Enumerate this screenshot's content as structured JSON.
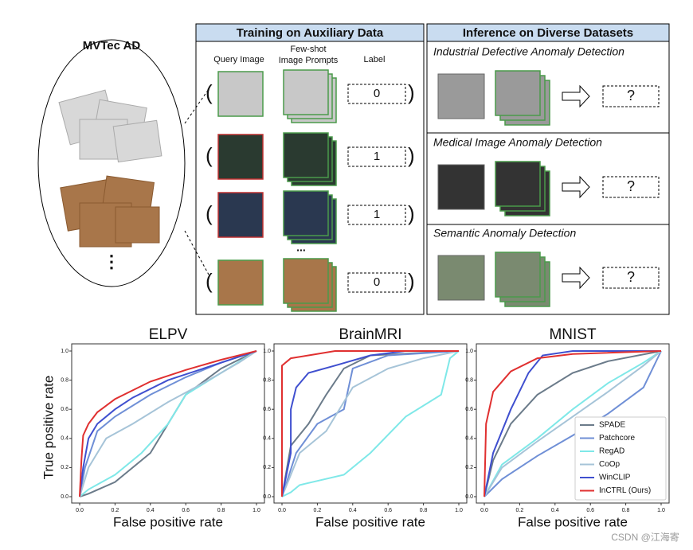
{
  "mvtec": {
    "title": "MVTec AD",
    "ellipsis": "⋮"
  },
  "training": {
    "title": "Training on Auxiliary Data",
    "query_header": "Query Image",
    "prompts_header": [
      "Few-shot",
      "Image Prompts"
    ],
    "label_header": "Label",
    "labels": [
      "0",
      "1",
      "1",
      "0"
    ],
    "ellipsis": "..."
  },
  "inference": {
    "title": "Inference on Diverse Datasets",
    "tasks": [
      {
        "name": "Industrial Defective Anomaly Detection",
        "output": "?"
      },
      {
        "name": "Medical Image Anomaly Detection",
        "output": "?"
      },
      {
        "name": "Semantic Anomaly Detection",
        "output": "?"
      }
    ]
  },
  "chart_data": [
    {
      "type": "line",
      "title": "ELPV",
      "xlabel": "False positive rate",
      "ylabel": "True positive rate",
      "xlim": [
        0,
        1
      ],
      "ylim": [
        0,
        1
      ],
      "xticks": [
        {
          "value": 0,
          "label": "0.0"
        },
        {
          "value": 0.2,
          "label": "0.2"
        },
        {
          "value": 0.4,
          "label": "0.4"
        },
        {
          "value": 0.6,
          "label": "0.6"
        },
        {
          "value": 0.8,
          "label": "0.8"
        },
        {
          "value": 1,
          "label": "1.0"
        }
      ],
      "yticks": [
        {
          "value": 0,
          "label": "0.0"
        },
        {
          "value": 0.2,
          "label": "0.2"
        },
        {
          "value": 0.4,
          "label": "0.4"
        },
        {
          "value": 0.6,
          "label": "0.6"
        },
        {
          "value": 0.8,
          "label": "0.8"
        },
        {
          "value": 1,
          "label": "1.0"
        }
      ],
      "series": [
        {
          "color": "#6b7b8a",
          "x": [
            0,
            0.05,
            0.2,
            0.4,
            0.5,
            0.6,
            0.8,
            1
          ],
          "values": [
            0,
            0.02,
            0.1,
            0.3,
            0.5,
            0.7,
            0.88,
            1
          ]
        },
        {
          "color": "#6f8fd6",
          "x": [
            0,
            0.03,
            0.1,
            0.2,
            0.4,
            0.6,
            0.8,
            1
          ],
          "values": [
            0,
            0.2,
            0.45,
            0.55,
            0.7,
            0.82,
            0.92,
            1
          ]
        },
        {
          "color": "#7fe8e8",
          "x": [
            0,
            0.05,
            0.2,
            0.35,
            0.5,
            0.6,
            0.8,
            1
          ],
          "values": [
            0,
            0.05,
            0.15,
            0.3,
            0.5,
            0.7,
            0.85,
            1
          ]
        },
        {
          "color": "#a6c4d8",
          "x": [
            0,
            0.05,
            0.15,
            0.3,
            0.5,
            0.7,
            0.9,
            1
          ],
          "values": [
            0,
            0.2,
            0.4,
            0.5,
            0.65,
            0.78,
            0.92,
            1
          ]
        },
        {
          "color": "#3f4fcf",
          "x": [
            0,
            0.02,
            0.05,
            0.1,
            0.2,
            0.3,
            0.5,
            0.7,
            0.9,
            1
          ],
          "values": [
            0,
            0.2,
            0.4,
            0.5,
            0.6,
            0.68,
            0.8,
            0.88,
            0.96,
            1
          ]
        },
        {
          "color": "#e03030",
          "x": [
            0,
            0.01,
            0.02,
            0.05,
            0.1,
            0.2,
            0.3,
            0.4,
            0.6,
            0.8,
            1
          ],
          "values": [
            0,
            0.25,
            0.42,
            0.5,
            0.58,
            0.67,
            0.73,
            0.79,
            0.87,
            0.94,
            1
          ]
        }
      ]
    },
    {
      "type": "line",
      "title": "BrainMRI",
      "xlabel": "False positive rate",
      "xlim": [
        0,
        1
      ],
      "ylim": [
        0,
        1
      ],
      "xticks": [
        {
          "value": 0,
          "label": "0.0"
        },
        {
          "value": 0.2,
          "label": "0.2"
        },
        {
          "value": 0.4,
          "label": "0.4"
        },
        {
          "value": 0.6,
          "label": "0.6"
        },
        {
          "value": 0.8,
          "label": "0.8"
        },
        {
          "value": 1,
          "label": "1.0"
        }
      ],
      "yticks": [
        {
          "value": 0,
          "label": "0.0"
        },
        {
          "value": 0.2,
          "label": "0.2"
        },
        {
          "value": 0.4,
          "label": "0.4"
        },
        {
          "value": 0.6,
          "label": "0.6"
        },
        {
          "value": 0.8,
          "label": "0.8"
        },
        {
          "value": 1,
          "label": "1.0"
        }
      ],
      "series": [
        {
          "color": "#6b7b8a",
          "x": [
            0,
            0.05,
            0.15,
            0.25,
            0.35,
            0.5,
            1
          ],
          "values": [
            0,
            0.35,
            0.5,
            0.7,
            0.88,
            0.97,
            1
          ]
        },
        {
          "color": "#6f8fd6",
          "x": [
            0,
            0.08,
            0.2,
            0.35,
            0.4,
            0.6,
            1
          ],
          "values": [
            0,
            0.3,
            0.5,
            0.6,
            0.88,
            0.97,
            1
          ]
        },
        {
          "color": "#7fe8e8",
          "x": [
            0,
            0.05,
            0.1,
            0.35,
            0.5,
            0.7,
            0.9,
            0.95,
            1
          ],
          "values": [
            0,
            0.03,
            0.08,
            0.15,
            0.3,
            0.55,
            0.7,
            0.95,
            1
          ]
        },
        {
          "color": "#a6c4d8",
          "x": [
            0,
            0.1,
            0.25,
            0.4,
            0.6,
            0.8,
            1
          ],
          "values": [
            0,
            0.3,
            0.45,
            0.75,
            0.88,
            0.95,
            1
          ]
        },
        {
          "color": "#3f4fcf",
          "x": [
            0,
            0.05,
            0.05,
            0.08,
            0.15,
            0.3,
            0.5,
            0.7,
            1
          ],
          "values": [
            0,
            0.3,
            0.6,
            0.75,
            0.85,
            0.9,
            0.97,
            1,
            1
          ]
        },
        {
          "color": "#e03030",
          "x": [
            0,
            0,
            0.05,
            0.15,
            0.3,
            1
          ],
          "values": [
            0,
            0.9,
            0.95,
            0.97,
            1,
            1
          ]
        }
      ]
    },
    {
      "type": "line",
      "title": "MNIST",
      "xlabel": "False positive rate",
      "xlim": [
        0,
        1
      ],
      "ylim": [
        0,
        1
      ],
      "legend": "lower right",
      "xticks": [
        {
          "value": 0,
          "label": "0.0"
        },
        {
          "value": 0.2,
          "label": "0.2"
        },
        {
          "value": 0.4,
          "label": "0.4"
        },
        {
          "value": 0.6,
          "label": "0.6"
        },
        {
          "value": 0.8,
          "label": "0.8"
        },
        {
          "value": 1,
          "label": "1.0"
        }
      ],
      "yticks": [
        {
          "value": 0,
          "label": "0.0"
        },
        {
          "value": 0.2,
          "label": "0.2"
        },
        {
          "value": 0.4,
          "label": "0.4"
        },
        {
          "value": 0.6,
          "label": "0.6"
        },
        {
          "value": 0.8,
          "label": "0.8"
        },
        {
          "value": 1,
          "label": "1.0"
        }
      ],
      "series": [
        {
          "name": "SPADE",
          "color": "#6b7b8a",
          "x": [
            0,
            0.05,
            0.15,
            0.3,
            0.5,
            0.7,
            1
          ],
          "values": [
            0,
            0.25,
            0.5,
            0.7,
            0.85,
            0.93,
            1
          ]
        },
        {
          "name": "Patchcore",
          "color": "#6f8fd6",
          "x": [
            0,
            0.1,
            0.3,
            0.5,
            0.7,
            0.9,
            1
          ],
          "values": [
            0,
            0.12,
            0.28,
            0.42,
            0.57,
            0.75,
            1
          ]
        },
        {
          "name": "RegAD",
          "color": "#7fe8e8",
          "x": [
            0,
            0.1,
            0.3,
            0.5,
            0.7,
            0.9,
            1
          ],
          "values": [
            0,
            0.22,
            0.4,
            0.6,
            0.78,
            0.92,
            1
          ]
        },
        {
          "name": "CoOp",
          "color": "#a6c4d8",
          "x": [
            0,
            0.1,
            0.3,
            0.5,
            0.7,
            0.9,
            1
          ],
          "values": [
            0,
            0.2,
            0.38,
            0.55,
            0.72,
            0.9,
            1
          ]
        },
        {
          "name": "WinCLIP",
          "color": "#3f4fcf",
          "x": [
            0,
            0.05,
            0.15,
            0.25,
            0.33,
            0.5,
            1
          ],
          "values": [
            0,
            0.3,
            0.6,
            0.85,
            0.97,
            1,
            1
          ]
        },
        {
          "name": "InCTRL (Ours)",
          "color": "#e03030",
          "x": [
            0,
            0.01,
            0.05,
            0.15,
            0.3,
            0.5,
            1
          ],
          "values": [
            0,
            0.5,
            0.72,
            0.86,
            0.95,
            0.98,
            1
          ]
        }
      ]
    }
  ],
  "watermark": "CSDN @江海寄"
}
